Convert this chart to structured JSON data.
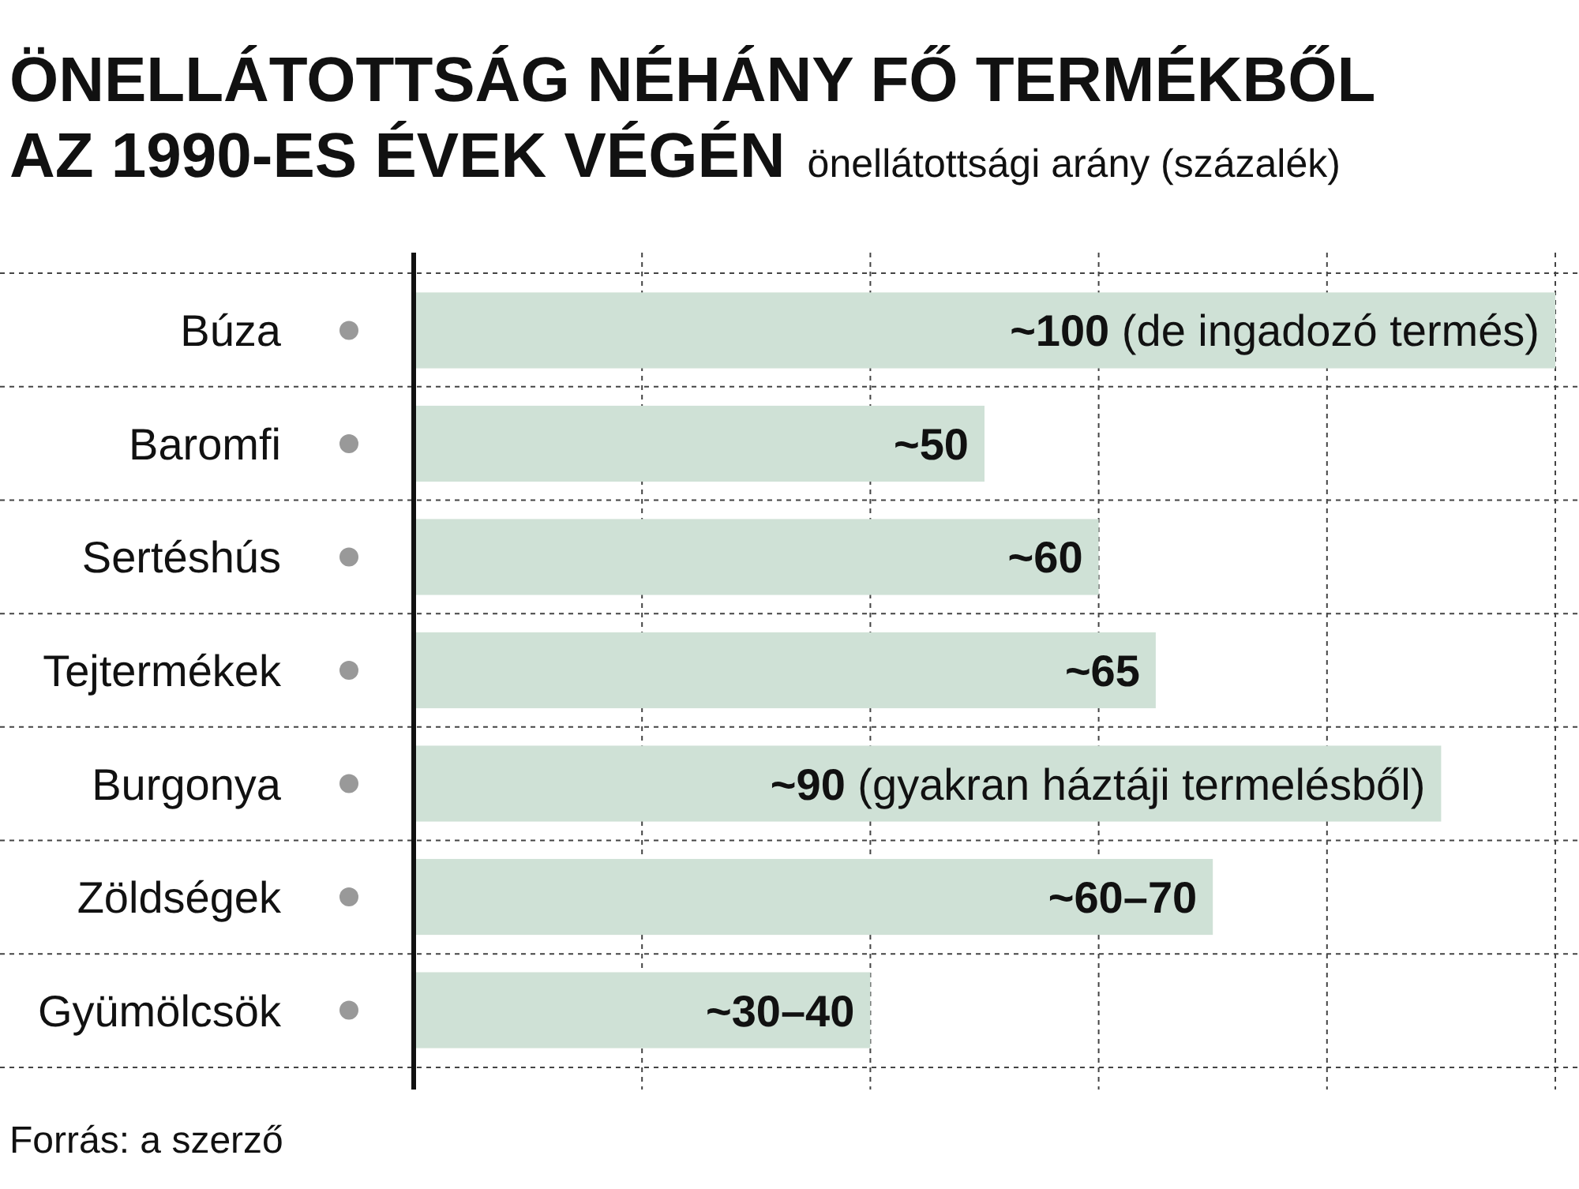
{
  "chart_data": {
    "type": "bar",
    "orientation": "horizontal",
    "title": "ÖNELLÁTOTTSÁG NÉHÁNY FŐ TERMÉKBŐL AZ 1990-ES ÉVEK VÉGÉN",
    "subtitle": "önellátottsági arány (százalék)",
    "categories": [
      "Búza",
      "Baromfi",
      "Sertéshús",
      "Tejtermékek",
      "Burgonya",
      "Zöldségek",
      "Gyümölcsök"
    ],
    "values": [
      100,
      50,
      60,
      65,
      90,
      70,
      40
    ],
    "value_labels": [
      "~100 (de ingadozó termés)",
      "~50",
      "~60",
      "~65",
      "~90 (gyakran háztáji termelésből)",
      "~60–70",
      "~30–40"
    ],
    "color": "#cfe1d6",
    "xlim": [
      0,
      100
    ],
    "xticks": [
      {
        "value": 20,
        "label": null
      },
      {
        "value": 40,
        "label": null
      },
      {
        "value": 60,
        "label": null
      },
      {
        "value": 80,
        "label": null
      },
      {
        "value": 100,
        "label": null
      }
    ],
    "grid": true,
    "annotations": [
      "Forrás: a szerző"
    ]
  }
}
